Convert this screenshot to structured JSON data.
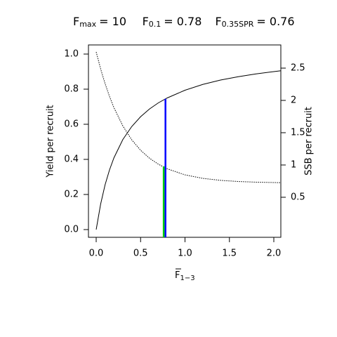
{
  "chart_data": {
    "type": "line",
    "title_items": [
      {
        "text": "F",
        "sub": "max",
        "rest": "= 10"
      },
      {
        "text": "F",
        "sub": "0.1",
        "rest": "= 0.78"
      },
      {
        "text": "F",
        "sub": "0.35SPR",
        "rest": "= 0.76"
      }
    ],
    "x_label": {
      "text": "F",
      "sub": "1−3"
    },
    "y_label": "Yield per recruit",
    "y2_label": "SSB per recruit",
    "x": [
      0,
      0.05,
      0.1,
      0.15,
      0.2,
      0.3,
      0.4,
      0.5,
      0.6,
      0.7,
      0.8,
      1.0,
      1.2,
      1.4,
      1.6,
      1.8,
      2.0,
      2.08
    ],
    "series": [
      {
        "color": "#000000",
        "dash": false,
        "values": [
          0,
          0.145,
          0.255,
          0.34,
          0.409,
          0.513,
          0.587,
          0.643,
          0.687,
          0.722,
          0.75,
          0.794,
          0.827,
          0.852,
          0.871,
          0.887,
          0.9,
          0.905
        ]
      },
      {
        "color": "#000000",
        "dash": true,
        "axis": "y2",
        "values": [
          2.75,
          2.488,
          2.259,
          2.06,
          1.887,
          1.605,
          1.39,
          1.228,
          1.105,
          1.012,
          0.941,
          0.847,
          0.793,
          0.762,
          0.744,
          0.734,
          0.728,
          0.726
        ]
      }
    ],
    "reference_lines": [
      {
        "x": 0.78,
        "y": 0.745,
        "color": "#0000ff"
      },
      {
        "x": 0.76,
        "y": 0.36,
        "color": "#00cd00"
      }
    ],
    "xlim": [
      -0.087,
      2.079
    ],
    "xticks": [
      {
        "value": 0,
        "label": "0.0"
      },
      {
        "value": 0.5,
        "label": "0.5"
      },
      {
        "value": 1,
        "label": "1.0"
      },
      {
        "value": 1.5,
        "label": "1.5"
      },
      {
        "value": 2,
        "label": "2.0"
      }
    ],
    "ylim": [
      -0.044,
      1.052
    ],
    "yticks": [
      {
        "value": 0,
        "label": "0.0"
      },
      {
        "value": 0.2,
        "label": "0.2"
      },
      {
        "value": 0.4,
        "label": "0.4"
      },
      {
        "value": 0.6,
        "label": "0.6"
      },
      {
        "value": 0.8,
        "label": "0.8"
      },
      {
        "value": 1,
        "label": "1.0"
      }
    ],
    "y2lim": [
      -0.12,
      2.859
    ],
    "y2ticks": [
      0.5,
      1,
      1.5,
      2,
      2.5
    ]
  }
}
